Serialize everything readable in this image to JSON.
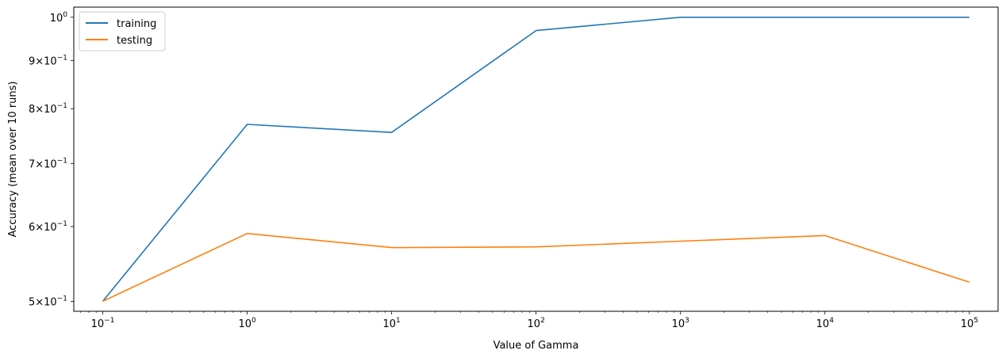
{
  "chart_data": {
    "type": "line",
    "xscale": "log",
    "yscale": "log",
    "xlabel": "Value of Gamma",
    "ylabel": "Accuracy (mean over 10 runs)",
    "x": [
      0.1,
      1,
      10,
      100,
      1000,
      10000,
      100000
    ],
    "xlim": [
      0.063,
      158000
    ],
    "ylim": [
      0.488,
      1.025
    ],
    "x_ticks": [
      {
        "base": "10",
        "exp": "−1"
      },
      {
        "base": "10",
        "exp": "0"
      },
      {
        "base": "10",
        "exp": "1"
      },
      {
        "base": "10",
        "exp": "2"
      },
      {
        "base": "10",
        "exp": "3"
      },
      {
        "base": "10",
        "exp": "4"
      },
      {
        "base": "10",
        "exp": "5"
      }
    ],
    "x_tick_values": [
      0.1,
      1,
      10,
      100,
      1000,
      10000,
      100000
    ],
    "y_ticks": [
      {
        "value": 0.5,
        "mant": "5×10",
        "exp": "−1"
      },
      {
        "value": 0.6,
        "mant": "6×10",
        "exp": "−1"
      },
      {
        "value": 0.7,
        "mant": "7×10",
        "exp": "−1"
      },
      {
        "value": 0.8,
        "mant": "8×10",
        "exp": "−1"
      },
      {
        "value": 0.9,
        "mant": "9×10",
        "exp": "−1"
      },
      {
        "value": 1.0,
        "mant": "10",
        "exp": "0"
      }
    ],
    "legend_position": "top-left",
    "series": [
      {
        "name": "training",
        "color": "#1f77b4",
        "values": [
          0.5,
          0.77,
          0.755,
          0.968,
          1.0,
          1.0,
          1.0
        ]
      },
      {
        "name": "testing",
        "color": "#ff7f0e",
        "values": [
          0.5,
          0.59,
          0.57,
          0.571,
          0.579,
          0.587,
          0.524
        ]
      }
    ]
  }
}
